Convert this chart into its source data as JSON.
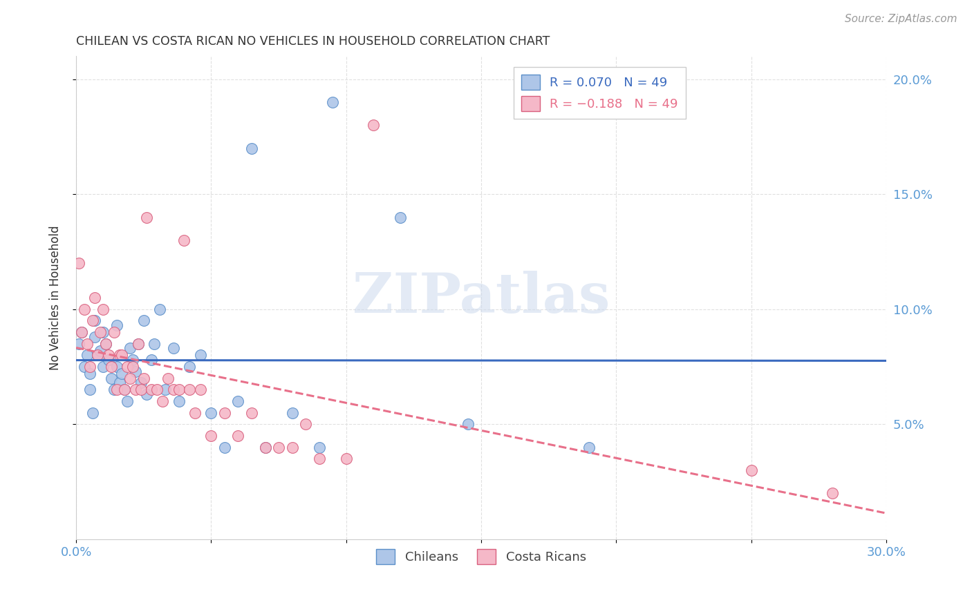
{
  "title": "CHILEAN VS COSTA RICAN NO VEHICLES IN HOUSEHOLD CORRELATION CHART",
  "source": "Source: ZipAtlas.com",
  "ylabel": "No Vehicles in Household",
  "x_min": 0.0,
  "x_max": 0.3,
  "y_min": 0.0,
  "y_max": 0.21,
  "y_ticks": [
    0.05,
    0.1,
    0.15,
    0.2
  ],
  "y_tick_labels": [
    "5.0%",
    "10.0%",
    "15.0%",
    "20.0%"
  ],
  "x_ticks": [
    0.0,
    0.05,
    0.1,
    0.15,
    0.2,
    0.25,
    0.3
  ],
  "chilean_color": "#aec6e8",
  "chilean_edge": "#5b8fc9",
  "costarican_color": "#f5b8c8",
  "costarican_edge": "#d9607e",
  "chilean_line_color": "#3a6abf",
  "costarican_line_color": "#e8708a",
  "watermark": "ZIPatlas",
  "background_color": "#ffffff",
  "grid_color": "#e0e0e0",
  "title_color": "#333333",
  "right_tick_color": "#5b9bd5",
  "source_color": "#999999",
  "chileans_x": [
    0.001,
    0.002,
    0.003,
    0.004,
    0.005,
    0.005,
    0.006,
    0.007,
    0.007,
    0.008,
    0.009,
    0.01,
    0.01,
    0.011,
    0.012,
    0.013,
    0.014,
    0.015,
    0.015,
    0.016,
    0.017,
    0.018,
    0.019,
    0.02,
    0.021,
    0.022,
    0.023,
    0.024,
    0.025,
    0.026,
    0.028,
    0.029,
    0.031,
    0.033,
    0.036,
    0.038,
    0.042,
    0.046,
    0.05,
    0.055,
    0.06,
    0.065,
    0.07,
    0.08,
    0.09,
    0.095,
    0.12,
    0.145,
    0.19
  ],
  "chileans_y": [
    0.085,
    0.09,
    0.075,
    0.08,
    0.065,
    0.072,
    0.055,
    0.088,
    0.095,
    0.08,
    0.082,
    0.075,
    0.09,
    0.085,
    0.078,
    0.07,
    0.065,
    0.093,
    0.075,
    0.068,
    0.072,
    0.065,
    0.06,
    0.083,
    0.078,
    0.073,
    0.085,
    0.068,
    0.095,
    0.063,
    0.078,
    0.085,
    0.1,
    0.065,
    0.083,
    0.06,
    0.075,
    0.08,
    0.055,
    0.04,
    0.06,
    0.17,
    0.04,
    0.055,
    0.04,
    0.19,
    0.14,
    0.05,
    0.04
  ],
  "costaricans_x": [
    0.001,
    0.002,
    0.003,
    0.004,
    0.005,
    0.006,
    0.007,
    0.008,
    0.009,
    0.01,
    0.011,
    0.012,
    0.013,
    0.014,
    0.015,
    0.016,
    0.017,
    0.018,
    0.019,
    0.02,
    0.021,
    0.022,
    0.023,
    0.024,
    0.025,
    0.026,
    0.028,
    0.03,
    0.032,
    0.034,
    0.036,
    0.038,
    0.04,
    0.042,
    0.044,
    0.046,
    0.05,
    0.055,
    0.06,
    0.065,
    0.07,
    0.075,
    0.08,
    0.085,
    0.09,
    0.1,
    0.11,
    0.25,
    0.28
  ],
  "costaricans_y": [
    0.12,
    0.09,
    0.1,
    0.085,
    0.075,
    0.095,
    0.105,
    0.08,
    0.09,
    0.1,
    0.085,
    0.08,
    0.075,
    0.09,
    0.065,
    0.08,
    0.08,
    0.065,
    0.075,
    0.07,
    0.075,
    0.065,
    0.085,
    0.065,
    0.07,
    0.14,
    0.065,
    0.065,
    0.06,
    0.07,
    0.065,
    0.065,
    0.13,
    0.065,
    0.055,
    0.065,
    0.045,
    0.055,
    0.045,
    0.055,
    0.04,
    0.04,
    0.04,
    0.05,
    0.035,
    0.035,
    0.18,
    0.03,
    0.02
  ]
}
